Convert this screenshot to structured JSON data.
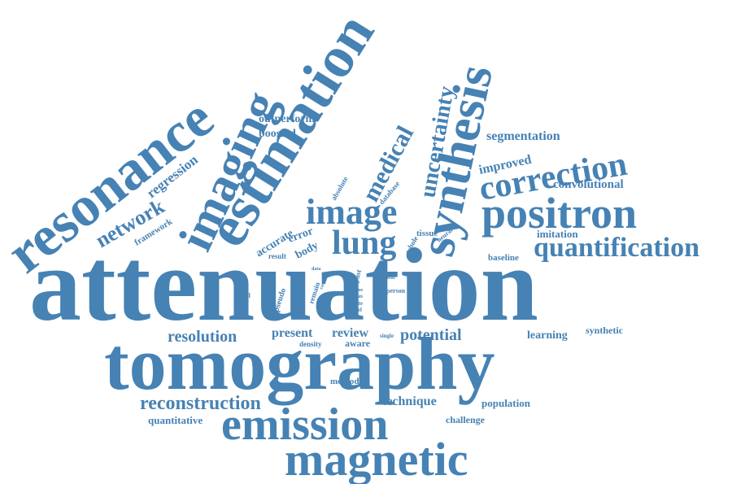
{
  "color": "#4682b4",
  "words": [
    {
      "text": "attenuation"
    },
    {
      "text": "tomography"
    },
    {
      "text": "emission"
    },
    {
      "text": "magnetic"
    },
    {
      "text": "resonance"
    },
    {
      "text": "imaging"
    },
    {
      "text": "estimation"
    },
    {
      "text": "synthesis"
    },
    {
      "text": "positron"
    },
    {
      "text": "correction"
    },
    {
      "text": "quantification"
    },
    {
      "text": "image"
    },
    {
      "text": "lung"
    },
    {
      "text": "medical"
    },
    {
      "text": "uncertainty"
    },
    {
      "text": "network"
    },
    {
      "text": "regression"
    },
    {
      "text": "outperform"
    },
    {
      "text": "boosted"
    },
    {
      "text": "segmentation"
    },
    {
      "text": "improved"
    },
    {
      "text": "convolutional"
    },
    {
      "text": "framework"
    },
    {
      "text": "absolute"
    },
    {
      "text": "database"
    },
    {
      "text": "accurate"
    },
    {
      "text": "error"
    },
    {
      "text": "body"
    },
    {
      "text": "tissue"
    },
    {
      "text": "whole"
    },
    {
      "text": "neural"
    },
    {
      "text": "imitation"
    },
    {
      "text": "baseline"
    },
    {
      "text": "result"
    },
    {
      "text": "data"
    },
    {
      "text": "model"
    },
    {
      "text": "pseudo"
    },
    {
      "text": "remain"
    },
    {
      "text": "case"
    },
    {
      "text": "past"
    },
    {
      "text": "field"
    },
    {
      "text": "time"
    },
    {
      "text": "atlas"
    },
    {
      "text": "state"
    },
    {
      "text": "novel"
    },
    {
      "text": "person"
    },
    {
      "text": "resolution"
    },
    {
      "text": "present"
    },
    {
      "text": "review"
    },
    {
      "text": "density"
    },
    {
      "text": "aware"
    },
    {
      "text": "single"
    },
    {
      "text": "potential"
    },
    {
      "text": "learning"
    },
    {
      "text": "synthetic"
    },
    {
      "text": "reconstruction"
    },
    {
      "text": "method"
    },
    {
      "text": "technique"
    },
    {
      "text": "population"
    },
    {
      "text": "quantitative"
    },
    {
      "text": "challenge"
    }
  ]
}
